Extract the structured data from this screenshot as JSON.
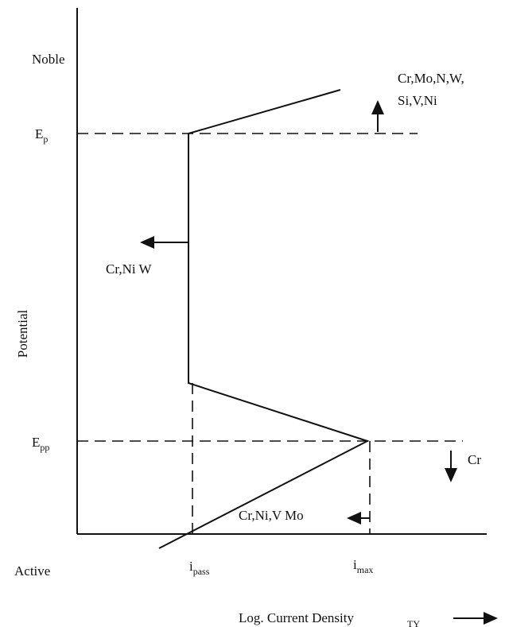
{
  "axes": {
    "y_top": "Noble",
    "y_bottom": "Active",
    "y_label": "Potential",
    "x_label": "Log. Current Density",
    "x_label_mark": "TY"
  },
  "levels": [
    {
      "symbol": "E",
      "subscript": "p"
    },
    {
      "symbol": "E",
      "subscript": "pp"
    }
  ],
  "currents": [
    {
      "symbol": "i",
      "subscript": "pass"
    },
    {
      "symbol": "i",
      "subscript": "max"
    }
  ],
  "effects": [
    {
      "lines": [
        "Cr,Mo,N,W,",
        "Si,V,Ni"
      ]
    },
    {
      "lines": [
        "Cr,Ni W"
      ]
    },
    {
      "lines": [
        "Cr"
      ]
    },
    {
      "lines": [
        "Cr,Ni,V Mo"
      ]
    }
  ]
}
